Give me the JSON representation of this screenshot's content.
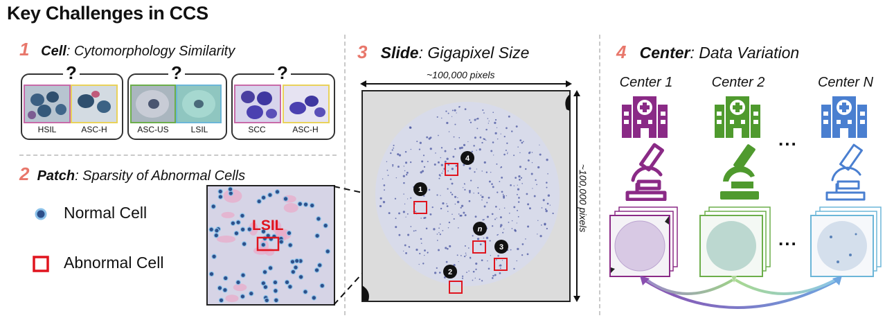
{
  "title": "Key Challenges in CCS",
  "sections": {
    "cell": {
      "num": "1",
      "bold": "Cell",
      "rest": ": Cytomorphology Similarity"
    },
    "patch": {
      "num": "2",
      "bold": "Patch",
      "rest": ": Sparsity of Abnormal Cells"
    },
    "slide": {
      "num": "3",
      "bold": "Slide",
      "rest": ": Gigapixel Size"
    },
    "center": {
      "num": "4",
      "bold": "Center",
      "rest": ":  Data Variation"
    }
  },
  "cell_pairs": [
    {
      "question": "?",
      "left": "HSIL",
      "right": "ASC-H"
    },
    {
      "question": "?",
      "left": "ASC-US",
      "right": "LSIL"
    },
    {
      "question": "?",
      "left": "SCC",
      "right": "ASC-H"
    }
  ],
  "legend": {
    "normal": "Normal Cell",
    "abnormal": "Abnormal Cell"
  },
  "patch_label": "LSIL",
  "slide": {
    "width_label": "~100,000 pixels",
    "height_label": "~100,000 pixels",
    "markers": [
      "1",
      "2",
      "3",
      "4",
      "n"
    ]
  },
  "centers": {
    "labels": [
      "Center 1",
      "Center 2",
      "Center N"
    ],
    "ellipsis": "..."
  },
  "colors": {
    "accent_number": "#e8776b",
    "abnormal_box": "#e0141e",
    "center1": "#8a2a86",
    "center2": "#4f9a2e",
    "centerN": "#4a7fd0"
  }
}
